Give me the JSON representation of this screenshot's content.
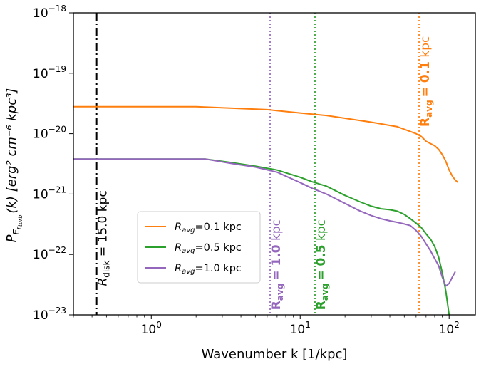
{
  "chart_data": {
    "type": "line",
    "xscale": "log",
    "yscale": "log",
    "xlim": [
      0.3,
      150
    ],
    "ylim": [
      1e-23,
      1e-18
    ],
    "xlabel": "Wavenumber k [1/kpc]",
    "ylabel": "P_{E_{r_{turb}}}(k) [erg² cm⁻⁶ kpc³]",
    "x_ticks": [
      {
        "value": 1,
        "base": "10",
        "exp": "0"
      },
      {
        "value": 10,
        "base": "10",
        "exp": "1"
      },
      {
        "value": 100,
        "base": "10",
        "exp": "2"
      }
    ],
    "y_ticks": [
      {
        "value": 1e-18,
        "base": "10",
        "exp": "−18"
      },
      {
        "value": 1e-19,
        "base": "10",
        "exp": "−19"
      },
      {
        "value": 1e-20,
        "base": "10",
        "exp": "−20"
      },
      {
        "value": 1e-21,
        "base": "10",
        "exp": "−21"
      },
      {
        "value": 1e-22,
        "base": "10",
        "exp": "−22"
      },
      {
        "value": 1e-23,
        "base": "10",
        "exp": "−23"
      }
    ],
    "grid": false,
    "legend_position": "center-left",
    "series": [
      {
        "name": "R_avg=0.1 kpc",
        "legend_label": {
          "sym": "R",
          "sub": "avg",
          "rest": "=0.1 kpc"
        },
        "color": "#ff7f0e",
        "points": [
          [
            0.3,
            2.8e-20
          ],
          [
            1,
            2.8e-20
          ],
          [
            2,
            2.8e-20
          ],
          [
            4,
            2.6e-20
          ],
          [
            6,
            2.5e-20
          ],
          [
            10,
            2.2e-20
          ],
          [
            15,
            2e-20
          ],
          [
            20,
            1.8e-20
          ],
          [
            30,
            1.55e-20
          ],
          [
            45,
            1.3e-20
          ],
          [
            60,
            1e-20
          ],
          [
            65,
            9e-21
          ],
          [
            70,
            7.5e-21
          ],
          [
            80,
            6.3e-21
          ],
          [
            85,
            5.5e-21
          ],
          [
            90,
            4.5e-21
          ],
          [
            95,
            3.5e-21
          ],
          [
            100,
            2.5e-21
          ],
          [
            105,
            2e-21
          ],
          [
            110,
            1.7e-21
          ],
          [
            115,
            1.55e-21
          ]
        ]
      },
      {
        "name": "R_avg=0.5 kpc",
        "legend_label": {
          "sym": "R",
          "sub": "avg",
          "rest": "=0.5 kpc"
        },
        "color": "#2ca02c",
        "points": [
          [
            0.3,
            3.8e-21
          ],
          [
            1,
            3.8e-21
          ],
          [
            2.3,
            3.8e-21
          ],
          [
            3.5,
            3.3e-21
          ],
          [
            5,
            2.9e-21
          ],
          [
            7,
            2.5e-21
          ],
          [
            10,
            1.9e-21
          ],
          [
            12,
            1.6e-21
          ],
          [
            15,
            1.35e-21
          ],
          [
            20,
            9.5e-22
          ],
          [
            25,
            7.5e-22
          ],
          [
            30,
            6.3e-22
          ],
          [
            35,
            5.7e-22
          ],
          [
            40,
            5.5e-22
          ],
          [
            45,
            5.2e-22
          ],
          [
            50,
            4.6e-22
          ],
          [
            55,
            3.9e-22
          ],
          [
            60,
            3.3e-22
          ],
          [
            65,
            2.8e-22
          ],
          [
            70,
            2.2e-22
          ],
          [
            75,
            1.8e-22
          ],
          [
            80,
            1.35e-22
          ],
          [
            85,
            9e-23
          ],
          [
            90,
            5e-23
          ],
          [
            95,
            2.5e-23
          ],
          [
            100,
            1e-23
          ]
        ]
      },
      {
        "name": "R_avg=1.0 kpc",
        "legend_label": {
          "sym": "R",
          "sub": "avg",
          "rest": "=1.0 kpc"
        },
        "color": "#9467bd",
        "points": [
          [
            0.3,
            3.8e-21
          ],
          [
            1,
            3.8e-21
          ],
          [
            2.3,
            3.8e-21
          ],
          [
            3.5,
            3.2e-21
          ],
          [
            5,
            2.8e-21
          ],
          [
            7,
            2.3e-21
          ],
          [
            10,
            1.55e-21
          ],
          [
            12,
            1.25e-21
          ],
          [
            15,
            1e-21
          ],
          [
            20,
            7e-22
          ],
          [
            25,
            5.3e-22
          ],
          [
            30,
            4.4e-22
          ],
          [
            35,
            3.9e-22
          ],
          [
            40,
            3.6e-22
          ],
          [
            45,
            3.4e-22
          ],
          [
            50,
            3.2e-22
          ],
          [
            55,
            3e-22
          ],
          [
            60,
            2.5e-22
          ],
          [
            65,
            2e-22
          ],
          [
            70,
            1.5e-22
          ],
          [
            75,
            1.15e-22
          ],
          [
            80,
            8.5e-23
          ],
          [
            85,
            6.5e-23
          ],
          [
            90,
            4.2e-23
          ],
          [
            95,
            3e-23
          ],
          [
            100,
            3.3e-23
          ],
          [
            105,
            4.2e-23
          ],
          [
            110,
            5.2e-23
          ]
        ]
      }
    ],
    "vlines": [
      {
        "x": 0.43,
        "color": "#000000",
        "style": "dashdot",
        "label": {
          "sym": "R",
          "sub": "disk",
          "rest": " = 15.0 kpc"
        },
        "label_y": 3e-23
      },
      {
        "x": 6.28,
        "color": "#9467bd",
        "style": "dotted",
        "label": {
          "sym": "R",
          "sub": "avg",
          "rest": " = 1.0 kpc",
          "bold": "= 1.0",
          "plain": " kpc"
        },
        "label_y": 1.2e-23
      },
      {
        "x": 12.57,
        "color": "#2ca02c",
        "style": "dotted",
        "label": {
          "sym": "R",
          "sub": "avg",
          "rest": " = 0.5 kpc",
          "bold": "= 0.5",
          "plain": " kpc"
        },
        "label_y": 1.2e-23
      },
      {
        "x": 62.83,
        "color": "#ff7f0e",
        "style": "dotted",
        "label": {
          "sym": "R",
          "sub": "avg",
          "rest": " = 0.1 kpc",
          "bold": "= 0.1",
          "plain": " kpc"
        },
        "label_y": 1.3e-20
      }
    ]
  }
}
